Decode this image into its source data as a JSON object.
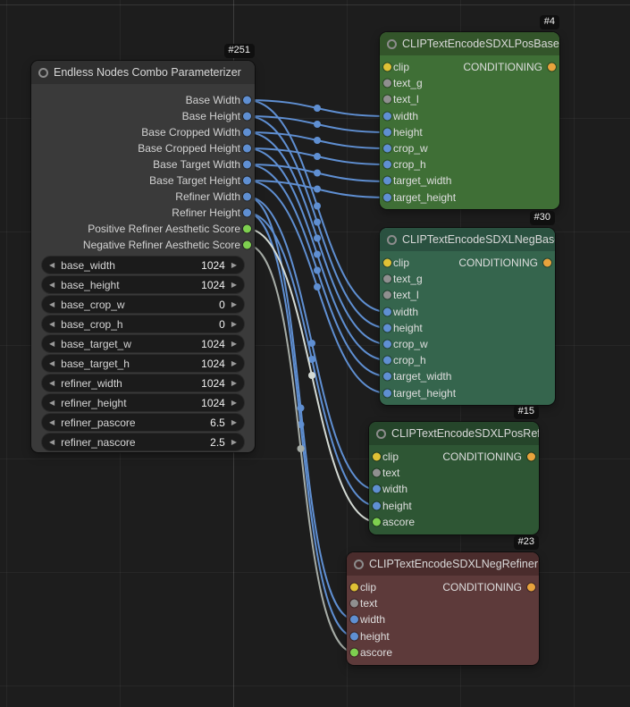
{
  "colors": {
    "canvas_bg": "#1d1d1d",
    "accent_int": "#5f8fd2",
    "accent_float": "#7ecf4f",
    "accent_clip": "#dfc135",
    "accent_text_slot": "#8f8f8f",
    "accent_conditioning": "#e8a33c",
    "link_int": "#5f8fd2",
    "link_float_pos": "#d4dad4",
    "link_float_neg": "#a6aca6",
    "badge_bg": "#0f0f0f"
  },
  "nodes": {
    "parameterizer": {
      "badge": "#251",
      "title": "Endless Nodes Combo Parameterizer",
      "color": "#2f2f2f",
      "bgcolor": "#3a3a3a",
      "outputs": [
        {
          "label": "Base Width",
          "type": "int"
        },
        {
          "label": "Base Height",
          "type": "int"
        },
        {
          "label": "Base Cropped Width",
          "type": "int"
        },
        {
          "label": "Base Cropped Height",
          "type": "int"
        },
        {
          "label": "Base Target Width",
          "type": "int"
        },
        {
          "label": "Base Target Height",
          "type": "int"
        },
        {
          "label": "Refiner Width",
          "type": "int"
        },
        {
          "label": "Refiner Height",
          "type": "int"
        },
        {
          "label": "Positive Refiner Aesthetic Score",
          "type": "float"
        },
        {
          "label": "Negative Refiner Aesthetic Score",
          "type": "float"
        }
      ],
      "widgets": [
        {
          "name": "base_width",
          "value": "1024"
        },
        {
          "name": "base_height",
          "value": "1024"
        },
        {
          "name": "base_crop_w",
          "value": "0"
        },
        {
          "name": "base_crop_h",
          "value": "0"
        },
        {
          "name": "base_target_w",
          "value": "1024"
        },
        {
          "name": "base_target_h",
          "value": "1024"
        },
        {
          "name": "refiner_width",
          "value": "1024"
        },
        {
          "name": "refiner_height",
          "value": "1024"
        },
        {
          "name": "refiner_pascore",
          "value": "6.5"
        },
        {
          "name": "refiner_nascore",
          "value": "2.5"
        }
      ]
    },
    "posBase": {
      "badge": "#4",
      "title": "CLIPTextEncodeSDXLPosBase",
      "color": "#33552a",
      "bgcolor": "#3f6f36",
      "output": "CONDITIONING",
      "inputs": [
        {
          "label": "clip",
          "type": "clip"
        },
        {
          "label": "text_g",
          "type": "text"
        },
        {
          "label": "text_l",
          "type": "text"
        },
        {
          "label": "width",
          "type": "int"
        },
        {
          "label": "height",
          "type": "int"
        },
        {
          "label": "crop_w",
          "type": "int"
        },
        {
          "label": "crop_h",
          "type": "int"
        },
        {
          "label": "target_width",
          "type": "int"
        },
        {
          "label": "target_height",
          "type": "int"
        }
      ]
    },
    "negBase": {
      "badge": "#30",
      "title": "CLIPTextEncodeSDXLNegBase",
      "color": "#2a5140",
      "bgcolor": "#35654d",
      "output": "CONDITIONING",
      "inputs": [
        {
          "label": "clip",
          "type": "clip"
        },
        {
          "label": "text_g",
          "type": "text"
        },
        {
          "label": "text_l",
          "type": "text"
        },
        {
          "label": "width",
          "type": "int"
        },
        {
          "label": "height",
          "type": "int"
        },
        {
          "label": "crop_w",
          "type": "int"
        },
        {
          "label": "crop_h",
          "type": "int"
        },
        {
          "label": "target_width",
          "type": "int"
        },
        {
          "label": "target_height",
          "type": "int"
        }
      ]
    },
    "posRefiner": {
      "badge": "#15",
      "title": "CLIPTextEncodeSDXLPosRefiner",
      "color": "#25452a",
      "bgcolor": "#2e5634",
      "output": "CONDITIONING",
      "inputs": [
        {
          "label": "clip",
          "type": "clip"
        },
        {
          "label": "text",
          "type": "text"
        },
        {
          "label": "width",
          "type": "int"
        },
        {
          "label": "height",
          "type": "int"
        },
        {
          "label": "ascore",
          "type": "float"
        }
      ]
    },
    "negRefiner": {
      "badge": "#23",
      "title": "CLIPTextEncodeSDXLNegRefiner",
      "color": "#4a2c2c",
      "bgcolor": "#5d3a3a",
      "output": "CONDITIONING",
      "inputs": [
        {
          "label": "clip",
          "type": "clip"
        },
        {
          "label": "text",
          "type": "text"
        },
        {
          "label": "width",
          "type": "int"
        },
        {
          "label": "height",
          "type": "int"
        },
        {
          "label": "ascore",
          "type": "float"
        }
      ]
    }
  }
}
